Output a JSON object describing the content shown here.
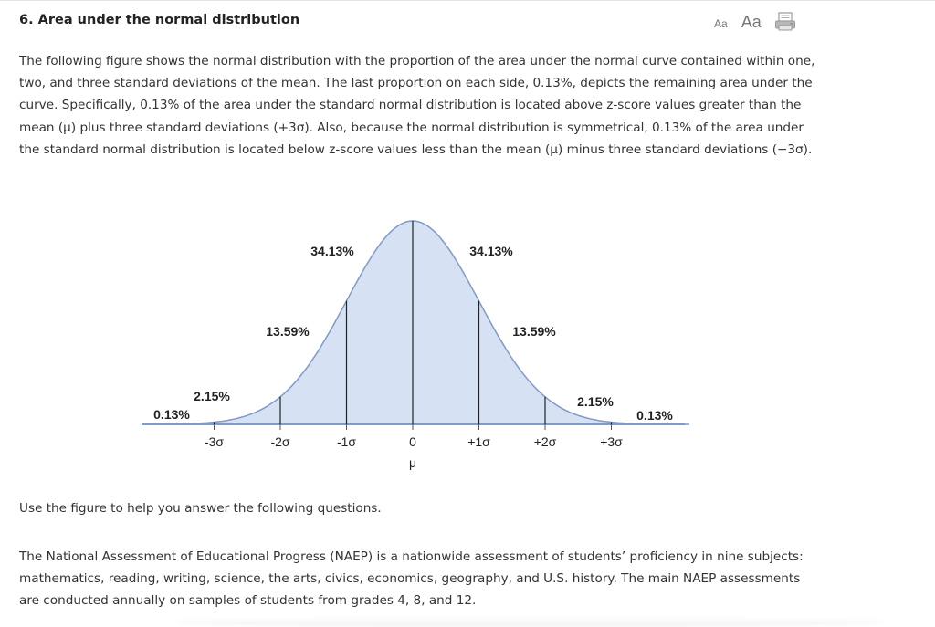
{
  "question": {
    "title": "6. Area under the normal distribution"
  },
  "toolbar": {
    "font_small_label": "Aa",
    "font_large_label": "Aa",
    "print_icon": "printer-icon"
  },
  "intro_text": "The following figure shows the normal distribution with the proportion of the area under the normal curve contained within one, two, and three standard deviations of the mean. The last proportion on each side, 0.13%, depicts the remaining area under the curve. Specifically, 0.13% of the area under the standard normal distribution is located above z-score values greater than the mean (μ) plus three standard deviations (+3σ). Also, because the normal distribution is symmetrical, 0.13% of the area under the standard normal distribution is located below z-score values less than the mean (μ) minus three standard deviations (−3σ).",
  "figure": {
    "fill_color": "#d6e2f4",
    "line_color": "#7f99c9",
    "divider_color": "#222222",
    "regions": [
      {
        "label": "0.13%",
        "from": -4,
        "to": -3
      },
      {
        "label": "2.15%",
        "from": -3,
        "to": -2
      },
      {
        "label": "13.59%",
        "from": -2,
        "to": -1
      },
      {
        "label": "34.13%",
        "from": -1,
        "to": 0
      },
      {
        "label": "34.13%",
        "from": 0,
        "to": 1
      },
      {
        "label": "13.59%",
        "from": 1,
        "to": 2
      },
      {
        "label": "2.15%",
        "from": 2,
        "to": 3
      },
      {
        "label": "0.13%",
        "from": 3,
        "to": 4
      }
    ],
    "ticks": [
      {
        "z": -3,
        "label": "-3σ"
      },
      {
        "z": -2,
        "label": "-2σ"
      },
      {
        "z": -1,
        "label": "-1σ"
      },
      {
        "z": 0,
        "label": "0"
      },
      {
        "z": 1,
        "label": "+1σ"
      },
      {
        "z": 2,
        "label": "+2σ"
      },
      {
        "z": 3,
        "label": "+3σ"
      }
    ],
    "mean_symbol": "μ"
  },
  "use_figure_text": "Use the figure to help you answer the following questions.",
  "naep_text": "The National Assessment of Educational Progress (NAEP) is a nationwide assessment of students’ proficiency in nine subjects: mathematics, reading, writing, science, the arts, civics, economics, geography, and U.S. history. The main NAEP assessments are conducted annually on samples of students from grades 4, 8, and 12."
}
